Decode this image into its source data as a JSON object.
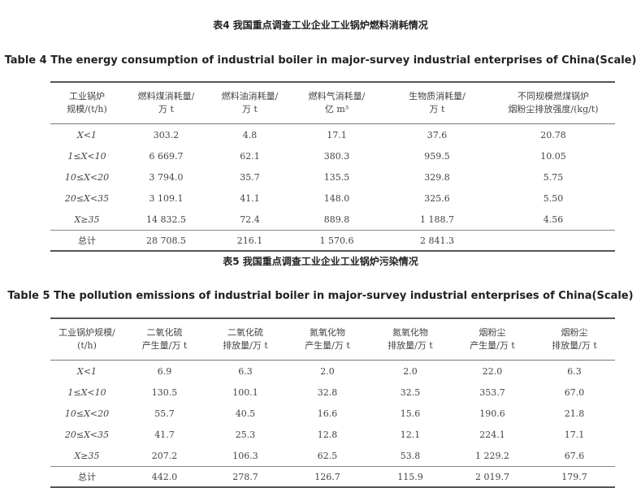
{
  "table4": {
    "title_cn": "表4 我国重点调查工业企业工业锅炉燃料消耗情况",
    "title_en": "Table 4 The energy consumption of industrial boiler in major-survey industrial enterprises of China(Scale)",
    "headers": [
      [
        "工业锅炉",
        "规模/(t/h)"
      ],
      [
        "燃料煤消耗量/",
        "万 t"
      ],
      [
        "燃料油消耗量/",
        "万 t"
      ],
      [
        "燃料气消耗量/",
        "亿 m³"
      ],
      [
        "生物质消耗量/",
        "万 t"
      ],
      [
        "不同规模燃煤锅炉",
        "烟粉尘排放强度/(kg/t)"
      ]
    ],
    "rows": [
      [
        "X<1",
        "303.2",
        "4.8",
        "17.1",
        "37.6",
        "20.78"
      ],
      [
        "1≤X<10",
        "6 669.7",
        "62.1",
        "380.3",
        "959.5",
        "10.05"
      ],
      [
        "10≤X<20",
        "3 794.0",
        "35.7",
        "135.5",
        "329.8",
        "5.75"
      ],
      [
        "20≤X<35",
        "3 109.1",
        "41.1",
        "148.0",
        "325.6",
        "5.50"
      ],
      [
        "X≥35",
        "14 832.5",
        "72.4",
        "889.8",
        "1 188.7",
        "4.56"
      ],
      [
        "总计",
        "28 708.5",
        "216.1",
        "1 570.6",
        "2 841.3",
        ""
      ]
    ]
  },
  "table5": {
    "title_cn": "表5 我国重点调查工业企业工业锅炉污染情况",
    "title_en": "Table 5 The pollution emissions of industrial boiler in major-survey industrial enterprises of China(Scale)",
    "headers": [
      [
        "工业锅炉规模/",
        "(t/h)"
      ],
      [
        "二氧化硫",
        "产生量/万 t"
      ],
      [
        "二氧化硫",
        "排放量/万 t"
      ],
      [
        "氮氧化物",
        "产生量/万 t"
      ],
      [
        "氮氧化物",
        "排放量/万 t"
      ],
      [
        "烟粉尘",
        "产生量/万 t"
      ],
      [
        "烟粉尘",
        "排放量/万 t"
      ]
    ],
    "rows": [
      [
        "X<1",
        "6.9",
        "6.3",
        "2.0",
        "2.0",
        "22.0",
        "6.3"
      ],
      [
        "1≤X<10",
        "130.5",
        "100.1",
        "32.8",
        "32.5",
        "353.7",
        "67.0"
      ],
      [
        "10≤X<20",
        "55.7",
        "40.5",
        "16.6",
        "15.6",
        "190.6",
        "21.8"
      ],
      [
        "20≤X<35",
        "41.7",
        "25.3",
        "12.8",
        "12.1",
        "224.1",
        "17.1"
      ],
      [
        "X≥35",
        "207.2",
        "106.3",
        "62.5",
        "53.8",
        "1 229.2",
        "67.6"
      ],
      [
        "总计",
        "442.0",
        "278.7",
        "126.7",
        "115.9",
        "2 019.7",
        "179.7"
      ]
    ]
  }
}
